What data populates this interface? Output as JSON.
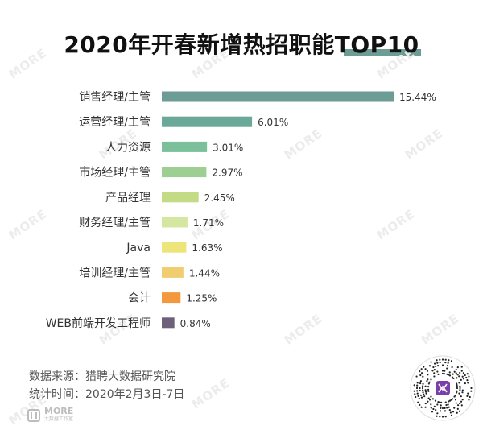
{
  "title": "2020年开春新增热招职能TOP10",
  "watermark_text": "MORE",
  "footer": {
    "source": "数据来源：猎聘大数据研究院",
    "period": "统计时间：2020年2月3日-7日"
  },
  "logo": {
    "text": "MORE",
    "sub": "大数据工作室"
  },
  "chart_data": {
    "type": "bar",
    "orientation": "horizontal",
    "title": "2020年开春新增热招职能TOP10",
    "categories": [
      "销售经理/主管",
      "运营经理/主管",
      "人力资源",
      "市场经理/主管",
      "产品经理",
      "财务经理/主管",
      "Java",
      "培训经理/主管",
      "会计",
      "WEB前端开发工程师"
    ],
    "values": [
      15.44,
      6.01,
      3.01,
      2.97,
      2.45,
      1.71,
      1.63,
      1.44,
      1.25,
      0.84
    ],
    "value_labels": [
      "15.44%",
      "6.01%",
      "3.01%",
      "2.97%",
      "2.45%",
      "1.71%",
      "1.63%",
      "1.44%",
      "1.25%",
      "0.84%"
    ],
    "colors": [
      "#6d9c94",
      "#6aa897",
      "#7bbf9b",
      "#9dcf92",
      "#c3db85",
      "#d5e6a0",
      "#ede47a",
      "#f0cd6e",
      "#f4983f",
      "#6e5f7a"
    ],
    "xlabel": "",
    "ylabel": "",
    "xlim": [
      0,
      15.44
    ],
    "grid": false,
    "legend": "none"
  }
}
